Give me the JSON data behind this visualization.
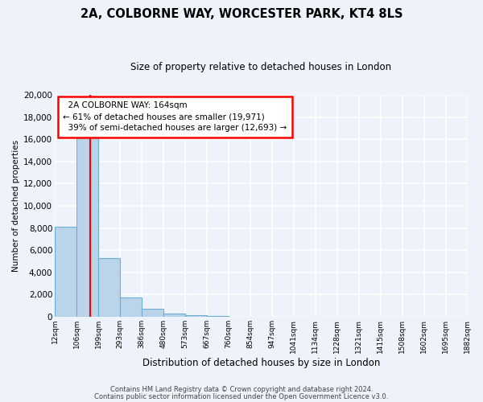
{
  "title": "2A, COLBORNE WAY, WORCESTER PARK, KT4 8LS",
  "subtitle": "Size of property relative to detached houses in London",
  "xlabel": "Distribution of detached houses by size in London",
  "ylabel": "Number of detached properties",
  "bar_values": [
    8100,
    16500,
    5300,
    1750,
    700,
    300,
    150,
    100,
    0,
    0,
    0,
    0,
    0,
    0,
    0,
    0,
    0,
    0,
    0
  ],
  "bin_labels": [
    "12sqm",
    "106sqm",
    "199sqm",
    "293sqm",
    "386sqm",
    "480sqm",
    "573sqm",
    "667sqm",
    "760sqm",
    "854sqm",
    "947sqm",
    "1041sqm",
    "1134sqm",
    "1228sqm",
    "1321sqm",
    "1415sqm",
    "1508sqm",
    "1602sqm",
    "1695sqm",
    "1882sqm"
  ],
  "bar_color": "#bad4ea",
  "bar_edge_color": "#6aafd6",
  "property_size": "164sqm",
  "pct_smaller": 61,
  "n_smaller": 19971,
  "pct_larger": 39,
  "n_larger": 12693,
  "annotation_label": "2A COLBORNE WAY: 164sqm",
  "ylim": [
    0,
    20000
  ],
  "yticks": [
    0,
    2000,
    4000,
    6000,
    8000,
    10000,
    12000,
    14000,
    16000,
    18000,
    20000
  ],
  "footer_line1": "Contains HM Land Registry data © Crown copyright and database right 2024.",
  "footer_line2": "Contains public sector information licensed under the Open Government Licence v3.0.",
  "bg_color": "#eef2fa",
  "grid_color": "#ffffff"
}
